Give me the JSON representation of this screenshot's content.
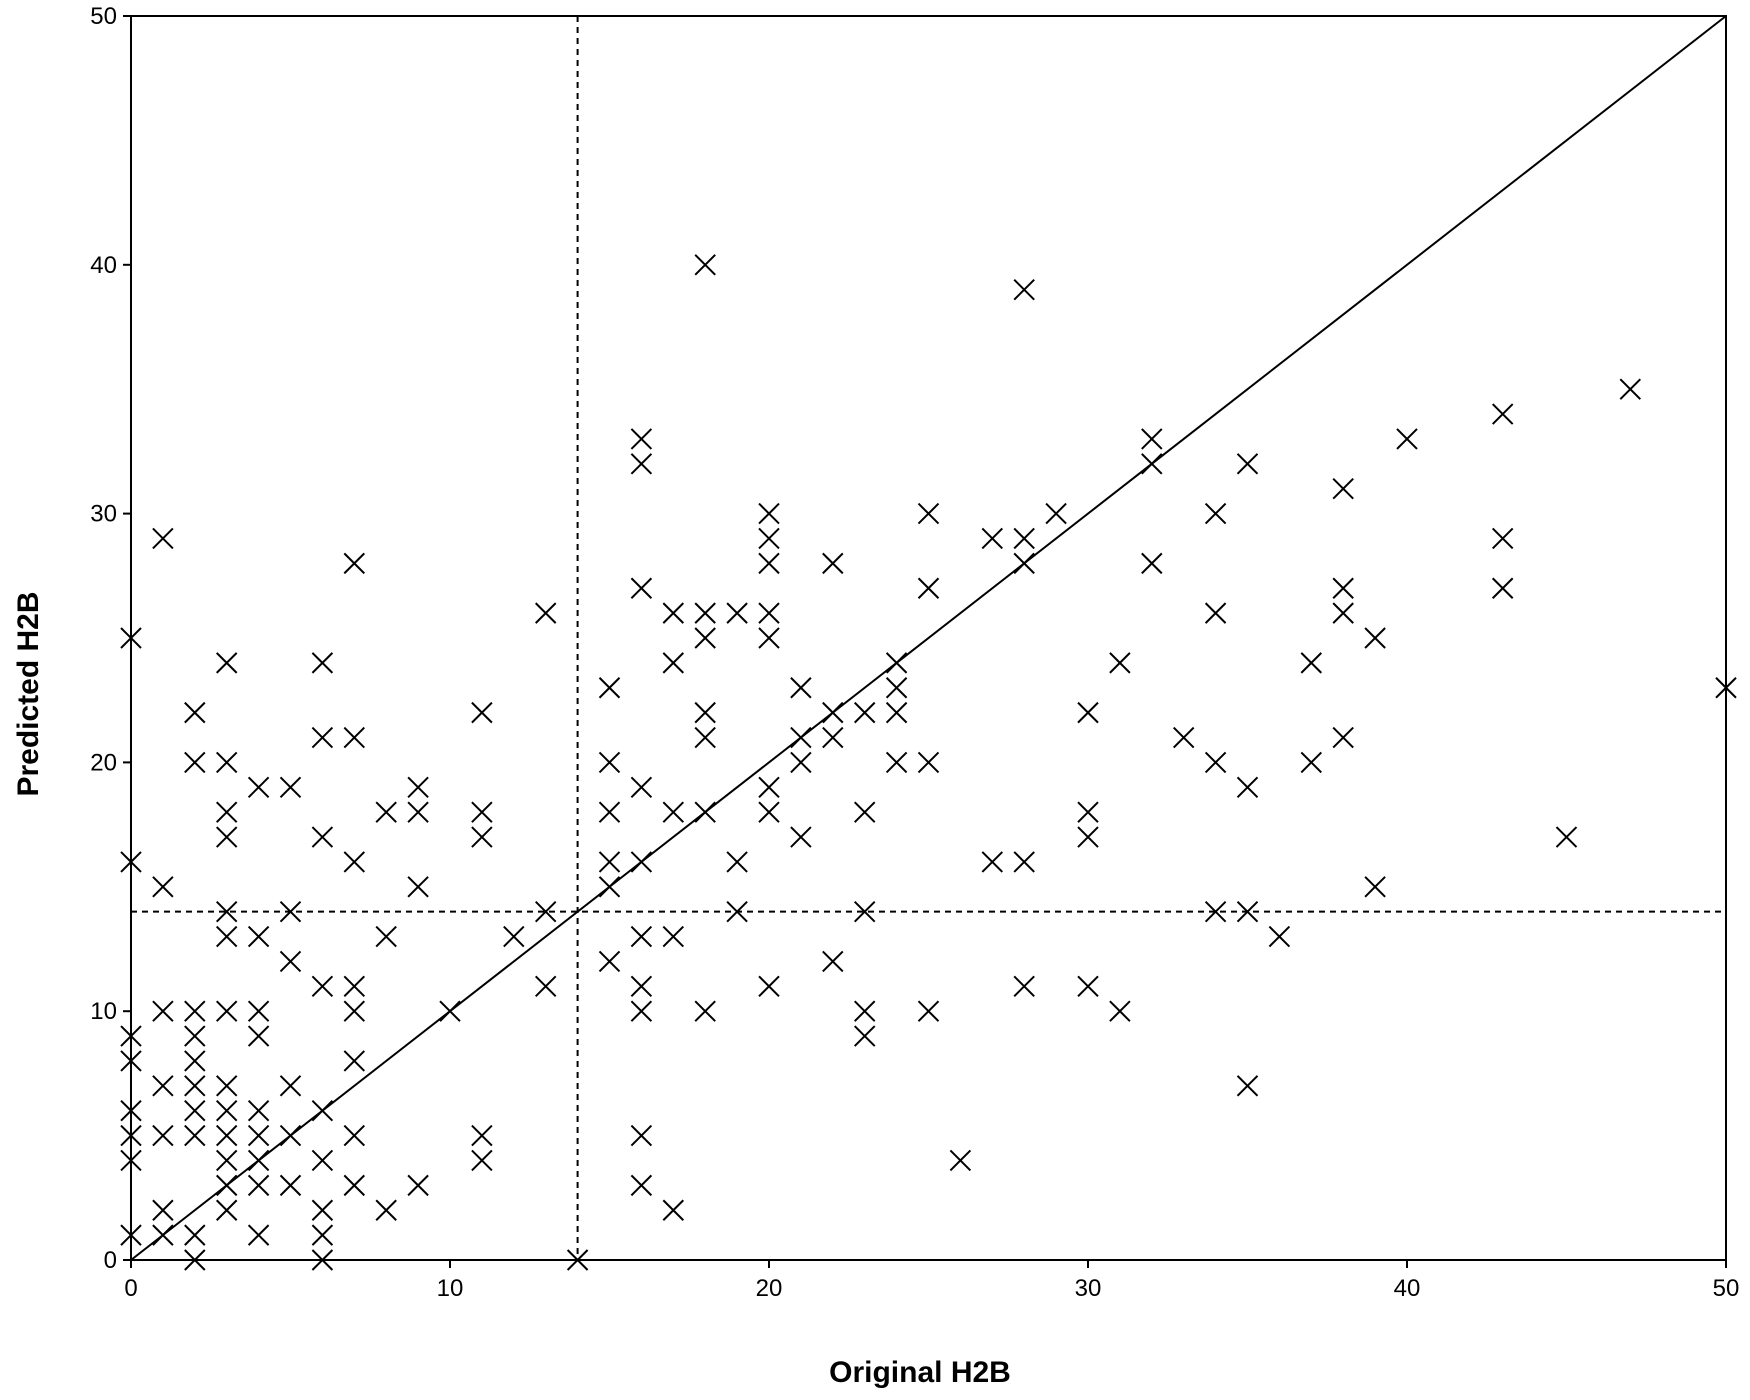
{
  "chart_data": {
    "type": "scatter",
    "title": "",
    "xlabel": "Original H2B",
    "ylabel": "Predicted H2B",
    "xlim": [
      0,
      50
    ],
    "ylim": [
      0,
      50
    ],
    "xticks": [
      "0",
      "10",
      "20",
      "30",
      "40",
      "50"
    ],
    "yticks": [
      "0",
      "10",
      "20",
      "30",
      "40",
      "50"
    ],
    "grid": false,
    "legend": "none",
    "marker": "x",
    "marker_color": "#000000",
    "reference_lines": [
      {
        "type": "identity",
        "from": [
          0,
          0
        ],
        "to": [
          50,
          50
        ],
        "style": "solid"
      },
      {
        "type": "vertical",
        "x": 14,
        "style": "dashed"
      },
      {
        "type": "horizontal",
        "y": 14,
        "style": "dashed"
      }
    ],
    "points": [
      [
        0,
        25
      ],
      [
        0,
        16
      ],
      [
        0,
        9
      ],
      [
        0,
        8
      ],
      [
        0,
        6
      ],
      [
        0,
        5
      ],
      [
        0,
        4
      ],
      [
        0,
        1
      ],
      [
        1,
        29
      ],
      [
        1,
        15
      ],
      [
        1,
        10
      ],
      [
        1,
        7
      ],
      [
        1,
        5
      ],
      [
        1,
        2
      ],
      [
        1,
        1
      ],
      [
        2,
        22
      ],
      [
        2,
        20
      ],
      [
        2,
        10
      ],
      [
        2,
        9
      ],
      [
        2,
        8
      ],
      [
        2,
        7
      ],
      [
        2,
        6
      ],
      [
        2,
        5
      ],
      [
        2,
        1
      ],
      [
        2,
        0
      ],
      [
        3,
        24
      ],
      [
        3,
        20
      ],
      [
        3,
        18
      ],
      [
        3,
        17
      ],
      [
        3,
        14
      ],
      [
        3,
        13
      ],
      [
        3,
        10
      ],
      [
        3,
        7
      ],
      [
        3,
        6
      ],
      [
        3,
        5
      ],
      [
        3,
        4
      ],
      [
        3,
        3
      ],
      [
        3,
        2
      ],
      [
        4,
        19
      ],
      [
        4,
        13
      ],
      [
        4,
        10
      ],
      [
        4,
        9
      ],
      [
        4,
        6
      ],
      [
        4,
        5
      ],
      [
        4,
        4
      ],
      [
        4,
        3
      ],
      [
        4,
        1
      ],
      [
        5,
        19
      ],
      [
        5,
        14
      ],
      [
        5,
        12
      ],
      [
        5,
        7
      ],
      [
        5,
        5
      ],
      [
        5,
        3
      ],
      [
        6,
        24
      ],
      [
        6,
        21
      ],
      [
        6,
        17
      ],
      [
        6,
        11
      ],
      [
        6,
        6
      ],
      [
        6,
        4
      ],
      [
        6,
        2
      ],
      [
        6,
        1
      ],
      [
        6,
        0
      ],
      [
        7,
        28
      ],
      [
        7,
        21
      ],
      [
        7,
        16
      ],
      [
        7,
        11
      ],
      [
        7,
        10
      ],
      [
        7,
        8
      ],
      [
        7,
        5
      ],
      [
        7,
        3
      ],
      [
        8,
        18
      ],
      [
        8,
        13
      ],
      [
        8,
        2
      ],
      [
        9,
        19
      ],
      [
        9,
        18
      ],
      [
        9,
        15
      ],
      [
        9,
        3
      ],
      [
        10,
        10
      ],
      [
        11,
        22
      ],
      [
        11,
        18
      ],
      [
        11,
        17
      ],
      [
        11,
        5
      ],
      [
        11,
        4
      ],
      [
        12,
        13
      ],
      [
        13,
        26
      ],
      [
        13,
        14
      ],
      [
        13,
        11
      ],
      [
        14,
        0
      ],
      [
        15,
        23
      ],
      [
        15,
        20
      ],
      [
        15,
        18
      ],
      [
        15,
        16
      ],
      [
        15,
        15
      ],
      [
        15,
        12
      ],
      [
        16,
        33
      ],
      [
        16,
        32
      ],
      [
        16,
        27
      ],
      [
        16,
        19
      ],
      [
        16,
        16
      ],
      [
        16,
        13
      ],
      [
        16,
        11
      ],
      [
        16,
        10
      ],
      [
        16,
        5
      ],
      [
        16,
        3
      ],
      [
        17,
        26
      ],
      [
        17,
        24
      ],
      [
        17,
        18
      ],
      [
        17,
        13
      ],
      [
        17,
        2
      ],
      [
        18,
        40
      ],
      [
        18,
        26
      ],
      [
        18,
        25
      ],
      [
        18,
        22
      ],
      [
        18,
        21
      ],
      [
        18,
        18
      ],
      [
        18,
        10
      ],
      [
        19,
        26
      ],
      [
        19,
        16
      ],
      [
        19,
        14
      ],
      [
        20,
        30
      ],
      [
        20,
        29
      ],
      [
        20,
        28
      ],
      [
        20,
        26
      ],
      [
        20,
        25
      ],
      [
        20,
        19
      ],
      [
        20,
        18
      ],
      [
        20,
        11
      ],
      [
        21,
        23
      ],
      [
        21,
        21
      ],
      [
        21,
        20
      ],
      [
        21,
        17
      ],
      [
        22,
        28
      ],
      [
        22,
        22
      ],
      [
        22,
        21
      ],
      [
        22,
        12
      ],
      [
        23,
        22
      ],
      [
        23,
        18
      ],
      [
        23,
        14
      ],
      [
        23,
        10
      ],
      [
        23,
        9
      ],
      [
        24,
        24
      ],
      [
        24,
        23
      ],
      [
        24,
        22
      ],
      [
        24,
        20
      ],
      [
        25,
        30
      ],
      [
        25,
        27
      ],
      [
        25,
        20
      ],
      [
        25,
        10
      ],
      [
        26,
        4
      ],
      [
        27,
        29
      ],
      [
        27,
        16
      ],
      [
        28,
        39
      ],
      [
        28,
        29
      ],
      [
        28,
        28
      ],
      [
        28,
        16
      ],
      [
        28,
        11
      ],
      [
        29,
        30
      ],
      [
        30,
        22
      ],
      [
        30,
        18
      ],
      [
        30,
        17
      ],
      [
        30,
        11
      ],
      [
        31,
        24
      ],
      [
        31,
        10
      ],
      [
        32,
        33
      ],
      [
        32,
        32
      ],
      [
        32,
        28
      ],
      [
        33,
        21
      ],
      [
        34,
        30
      ],
      [
        34,
        26
      ],
      [
        34,
        20
      ],
      [
        34,
        14
      ],
      [
        35,
        32
      ],
      [
        35,
        19
      ],
      [
        35,
        14
      ],
      [
        35,
        7
      ],
      [
        36,
        13
      ],
      [
        37,
        24
      ],
      [
        37,
        20
      ],
      [
        38,
        31
      ],
      [
        38,
        27
      ],
      [
        38,
        26
      ],
      [
        38,
        21
      ],
      [
        39,
        25
      ],
      [
        39,
        15
      ],
      [
        40,
        33
      ],
      [
        43,
        34
      ],
      [
        43,
        29
      ],
      [
        43,
        27
      ],
      [
        45,
        17
      ],
      [
        47,
        35
      ],
      [
        50,
        23
      ]
    ]
  }
}
